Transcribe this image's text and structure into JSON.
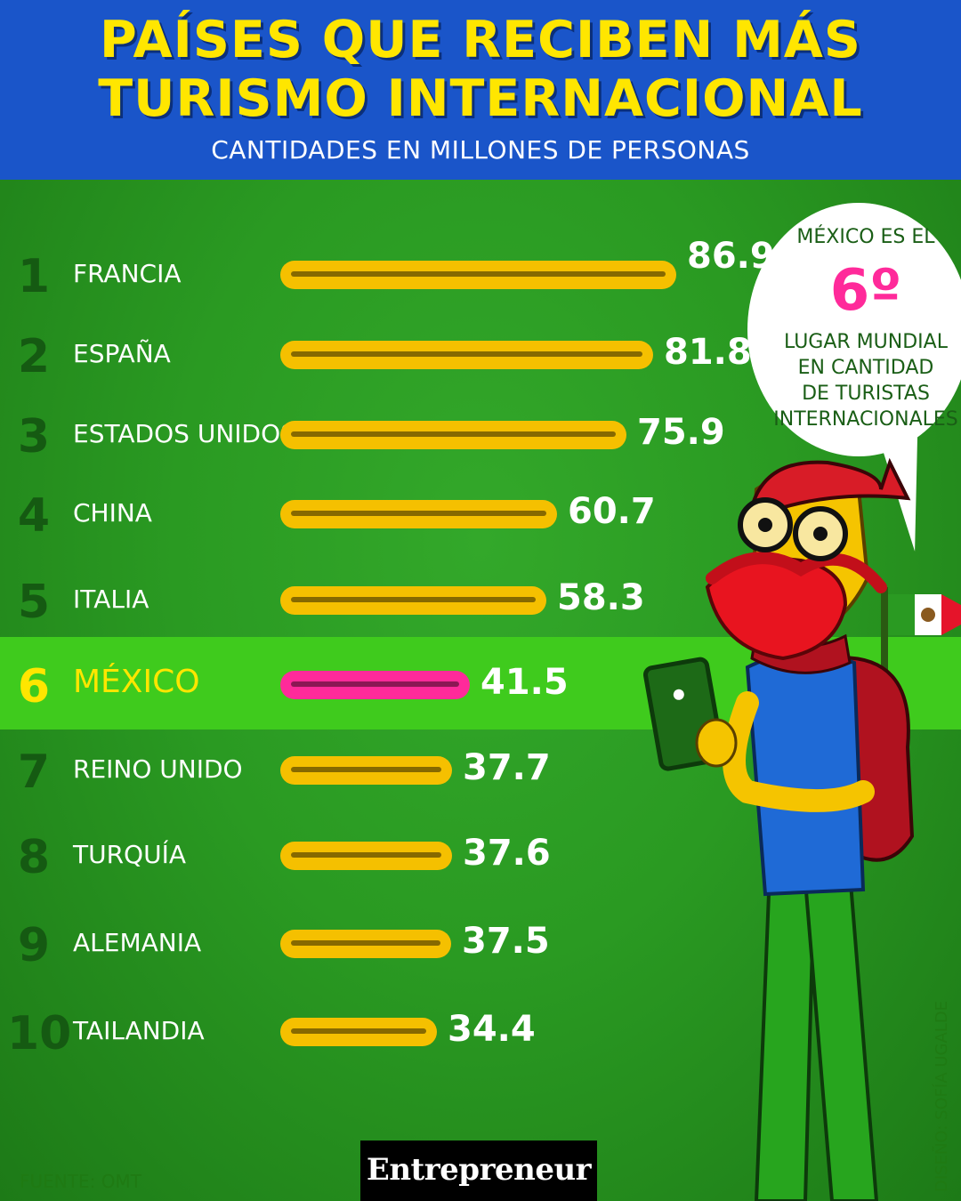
{
  "header": {
    "title_line1": "PAÍSES QUE RECIBEN MÁS",
    "title_line2": "TURISMO INTERNACIONAL",
    "subtitle": "CANTIDADES EN MILLONES DE PERSONAS"
  },
  "callout": {
    "line1": "MÉXICO ES EL",
    "rank": "6º",
    "line2": "LUGAR MUNDIAL",
    "line3": "EN CANTIDAD",
    "line4": "DE TURISTAS",
    "line5": "INTERNACIONALES"
  },
  "footer": {
    "source": "FUENTE: OMT",
    "credit": "DISEÑO: SOFÍA UGALDE",
    "logo": "Entrepreneur"
  },
  "colors": {
    "bar_default": "#f5c000",
    "bar_highlight": "#ff2a9a",
    "highlight_text": "#ffe600",
    "highlight_band": "#3fcb1d"
  },
  "chart_data": {
    "type": "bar",
    "orientation": "horizontal",
    "title": "PAÍSES QUE RECIBEN MÁS TURISMO INTERNACIONAL",
    "subtitle": "CANTIDADES EN MILLONES DE PERSONAS",
    "ranks": [
      "1",
      "2",
      "3",
      "4",
      "5",
      "6",
      "7",
      "8",
      "9",
      "10"
    ],
    "categories": [
      "FRANCIA",
      "ESPAÑA",
      "ESTADOS UNIDOS",
      "CHINA",
      "ITALIA",
      "MÉXICO",
      "REINO UNIDO",
      "TURQUÍA",
      "ALEMANIA",
      "TAILANDIA"
    ],
    "values": [
      86.9,
      81.8,
      75.9,
      60.7,
      58.3,
      41.5,
      37.7,
      37.6,
      37.5,
      34.4
    ],
    "value_labels": [
      "86.9",
      "81.8",
      "75.9",
      "60.7",
      "58.3",
      "41.5",
      "37.7",
      "37.6",
      "37.5",
      "34.4"
    ],
    "highlighted_category": "MÉXICO",
    "legend": "none",
    "grid": false
  }
}
